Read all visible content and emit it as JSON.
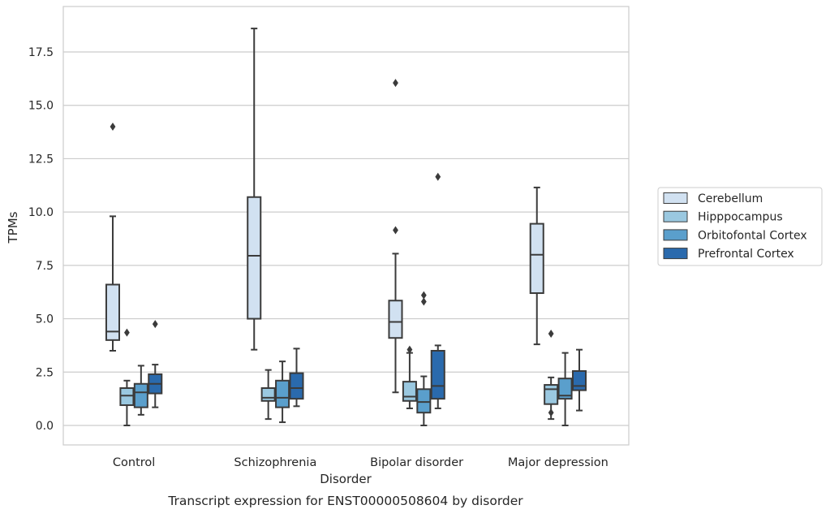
{
  "chart_data": {
    "type": "box",
    "caption": "Transcript expression for ENST00000508604 by disorder",
    "xlabel": "Disorder",
    "ylabel": "TPMs",
    "ylim": [
      -0.9,
      19.5
    ],
    "yticks": [
      0.0,
      2.5,
      5.0,
      7.5,
      10.0,
      12.5,
      15.0,
      17.5
    ],
    "ytick_labels": [
      "0.0",
      "2.5",
      "5.0",
      "7.5",
      "10.0",
      "12.5",
      "15.0",
      "17.5"
    ],
    "grid": "horizontal",
    "legend_position": "right",
    "categories": [
      "Control",
      "Schizophrenia",
      "Bipolar disorder",
      "Major depression"
    ],
    "series": [
      {
        "name": "Cerebellum",
        "color": "#d1e1f1",
        "boxes": [
          {
            "whisker_low": 3.5,
            "q1": 4.0,
            "median": 4.4,
            "q3": 6.6,
            "whisker_high": 9.8,
            "outliers": [
              14.0
            ]
          },
          {
            "whisker_low": 3.55,
            "q1": 5.0,
            "median": 7.95,
            "q3": 10.7,
            "whisker_high": 18.6,
            "outliers": []
          },
          {
            "whisker_low": 1.55,
            "q1": 4.1,
            "median": 4.85,
            "q3": 5.85,
            "whisker_high": 8.05,
            "outliers": [
              9.15,
              16.05
            ]
          },
          {
            "whisker_low": 3.8,
            "q1": 6.2,
            "median": 8.0,
            "q3": 9.45,
            "whisker_high": 11.15,
            "outliers": []
          }
        ]
      },
      {
        "name": "Hipppocampus",
        "color": "#9ac8e0",
        "boxes": [
          {
            "whisker_low": 0.0,
            "q1": 0.95,
            "median": 1.4,
            "q3": 1.75,
            "whisker_high": 2.1,
            "outliers": [
              4.35
            ]
          },
          {
            "whisker_low": 0.3,
            "q1": 1.15,
            "median": 1.3,
            "q3": 1.75,
            "whisker_high": 2.6,
            "outliers": []
          },
          {
            "whisker_low": 0.8,
            "q1": 1.15,
            "median": 1.35,
            "q3": 2.05,
            "whisker_high": 3.4,
            "outliers": [
              3.55
            ]
          },
          {
            "whisker_low": 0.3,
            "q1": 1.0,
            "median": 1.7,
            "q3": 1.9,
            "whisker_high": 2.25,
            "outliers": [
              0.6,
              4.3
            ]
          }
        ]
      },
      {
        "name": "Orbitofontal Cortex",
        "color": "#5a9fcc",
        "boxes": [
          {
            "whisker_low": 0.5,
            "q1": 0.85,
            "median": 1.55,
            "q3": 1.95,
            "whisker_high": 2.8,
            "outliers": []
          },
          {
            "whisker_low": 0.15,
            "q1": 0.85,
            "median": 1.3,
            "q3": 2.1,
            "whisker_high": 3.0,
            "outliers": []
          },
          {
            "whisker_low": 0.0,
            "q1": 0.6,
            "median": 1.1,
            "q3": 1.7,
            "whisker_high": 2.3,
            "outliers": [
              5.8,
              6.1
            ]
          },
          {
            "whisker_low": 0.0,
            "q1": 1.25,
            "median": 1.4,
            "q3": 2.2,
            "whisker_high": 3.4,
            "outliers": []
          }
        ]
      },
      {
        "name": "Prefrontal Cortex",
        "color": "#2a6aad",
        "boxes": [
          {
            "whisker_low": 0.85,
            "q1": 1.5,
            "median": 1.95,
            "q3": 2.4,
            "whisker_high": 2.85,
            "outliers": [
              4.75
            ]
          },
          {
            "whisker_low": 0.9,
            "q1": 1.25,
            "median": 1.75,
            "q3": 2.45,
            "whisker_high": 3.6,
            "outliers": []
          },
          {
            "whisker_low": 0.8,
            "q1": 1.25,
            "median": 1.85,
            "q3": 3.5,
            "whisker_high": 3.75,
            "outliers": [
              11.65
            ]
          },
          {
            "whisker_low": 0.7,
            "q1": 1.65,
            "median": 1.85,
            "q3": 2.55,
            "whisker_high": 3.55,
            "outliers": []
          }
        ]
      }
    ]
  }
}
